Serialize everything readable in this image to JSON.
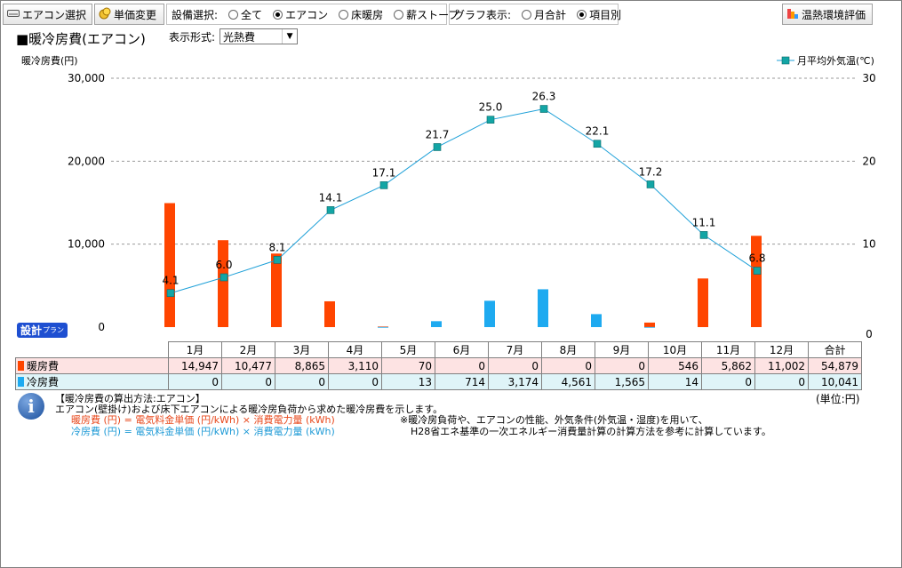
{
  "toolbar": {
    "aircon_select": "エアコン選択",
    "price_change": "単価変更",
    "thermal_eval": "温熱環境評価"
  },
  "equipment": {
    "label": "設備選択:",
    "options": [
      "全て",
      "エアコン",
      "床暖房",
      "薪ストーブ"
    ],
    "selected": "エアコン"
  },
  "graph_display": {
    "label": "グラフ表示:",
    "options": [
      "月合計",
      "項目別"
    ],
    "selected": "項目別"
  },
  "title": "■暖冷房費(エアコン)",
  "format": {
    "label": "表示形式:",
    "value": "光熱費"
  },
  "plan_badge": {
    "main": "設計",
    "sub": "プラン"
  },
  "chart_data": {
    "type": "bar",
    "ylabel_left": "暖冷房費(円)",
    "ylim_left": [
      0,
      30000
    ],
    "yticks_left": [
      "0",
      "10,000",
      "20,000",
      "30,000"
    ],
    "ylim_right": [
      0,
      30
    ],
    "yticks_right": [
      "0",
      "10",
      "20",
      "30"
    ],
    "grid": true,
    "legend": {
      "position": "top-right",
      "label": "月平均外気温(℃)"
    },
    "categories": [
      "1月",
      "2月",
      "3月",
      "4月",
      "5月",
      "6月",
      "7月",
      "8月",
      "9月",
      "10月",
      "11月",
      "12月"
    ],
    "series": [
      {
        "name": "暖房費",
        "color": "#ff4500",
        "values": [
          14947,
          10477,
          8865,
          3110,
          70,
          0,
          0,
          0,
          0,
          546,
          5862,
          11002
        ]
      },
      {
        "name": "冷房費",
        "color": "#1eaaf0",
        "values": [
          0,
          0,
          0,
          0,
          13,
          714,
          3174,
          4561,
          1565,
          14,
          0,
          0
        ]
      }
    ],
    "line": {
      "name": "月平均外気温(℃)",
      "color": "#1ea0d8",
      "marker_color": "#13a5a5",
      "values": [
        4.1,
        6.0,
        8.1,
        14.1,
        17.1,
        21.7,
        25.0,
        26.3,
        22.1,
        17.2,
        11.1,
        6.8
      ],
      "labels": [
        "4.1",
        "6.0",
        "8.1",
        "14.1",
        "17.1",
        "21.7",
        "25.0",
        "26.3",
        "22.1",
        "17.2",
        "11.1",
        "6.8"
      ]
    }
  },
  "table": {
    "total_header": "合計",
    "rows": [
      {
        "label": "暖房費",
        "color": "#ff4500",
        "values": [
          "14,947",
          "10,477",
          "8,865",
          "3,110",
          "70",
          "0",
          "0",
          "0",
          "0",
          "546",
          "5,862",
          "11,002"
        ],
        "total": "54,879"
      },
      {
        "label": "冷房費",
        "color": "#1eaaf0",
        "values": [
          "0",
          "0",
          "0",
          "0",
          "13",
          "714",
          "3,174",
          "4,561",
          "1,565",
          "14",
          "0",
          "0"
        ],
        "total": "10,041"
      }
    ]
  },
  "unit": "(単位:円)",
  "notes": {
    "heading": "【暖冷房費の算出方法:エアコン】",
    "line1": "エアコン(壁掛け)および床下エアコンによる暖冷房負荷から求めた暖冷房費を示します。",
    "heat_formula": "暖房費 (円) = 電気料金単価 (円/kWh) × 消費電力量 (kWh)",
    "cool_formula": "冷房費 (円) = 電気料金単価 (円/kWh) × 消費電力量 (kWh)",
    "right1": "※暖冷房負荷や、エアコンの性能、外気条件(外気温・湿度)を用いて、",
    "right2": "H28省エネ基準の一次エネルギー消費量計算の計算方法を参考に計算しています。",
    "heat_color": "#e8481c",
    "cool_color": "#1e9ad6"
  }
}
